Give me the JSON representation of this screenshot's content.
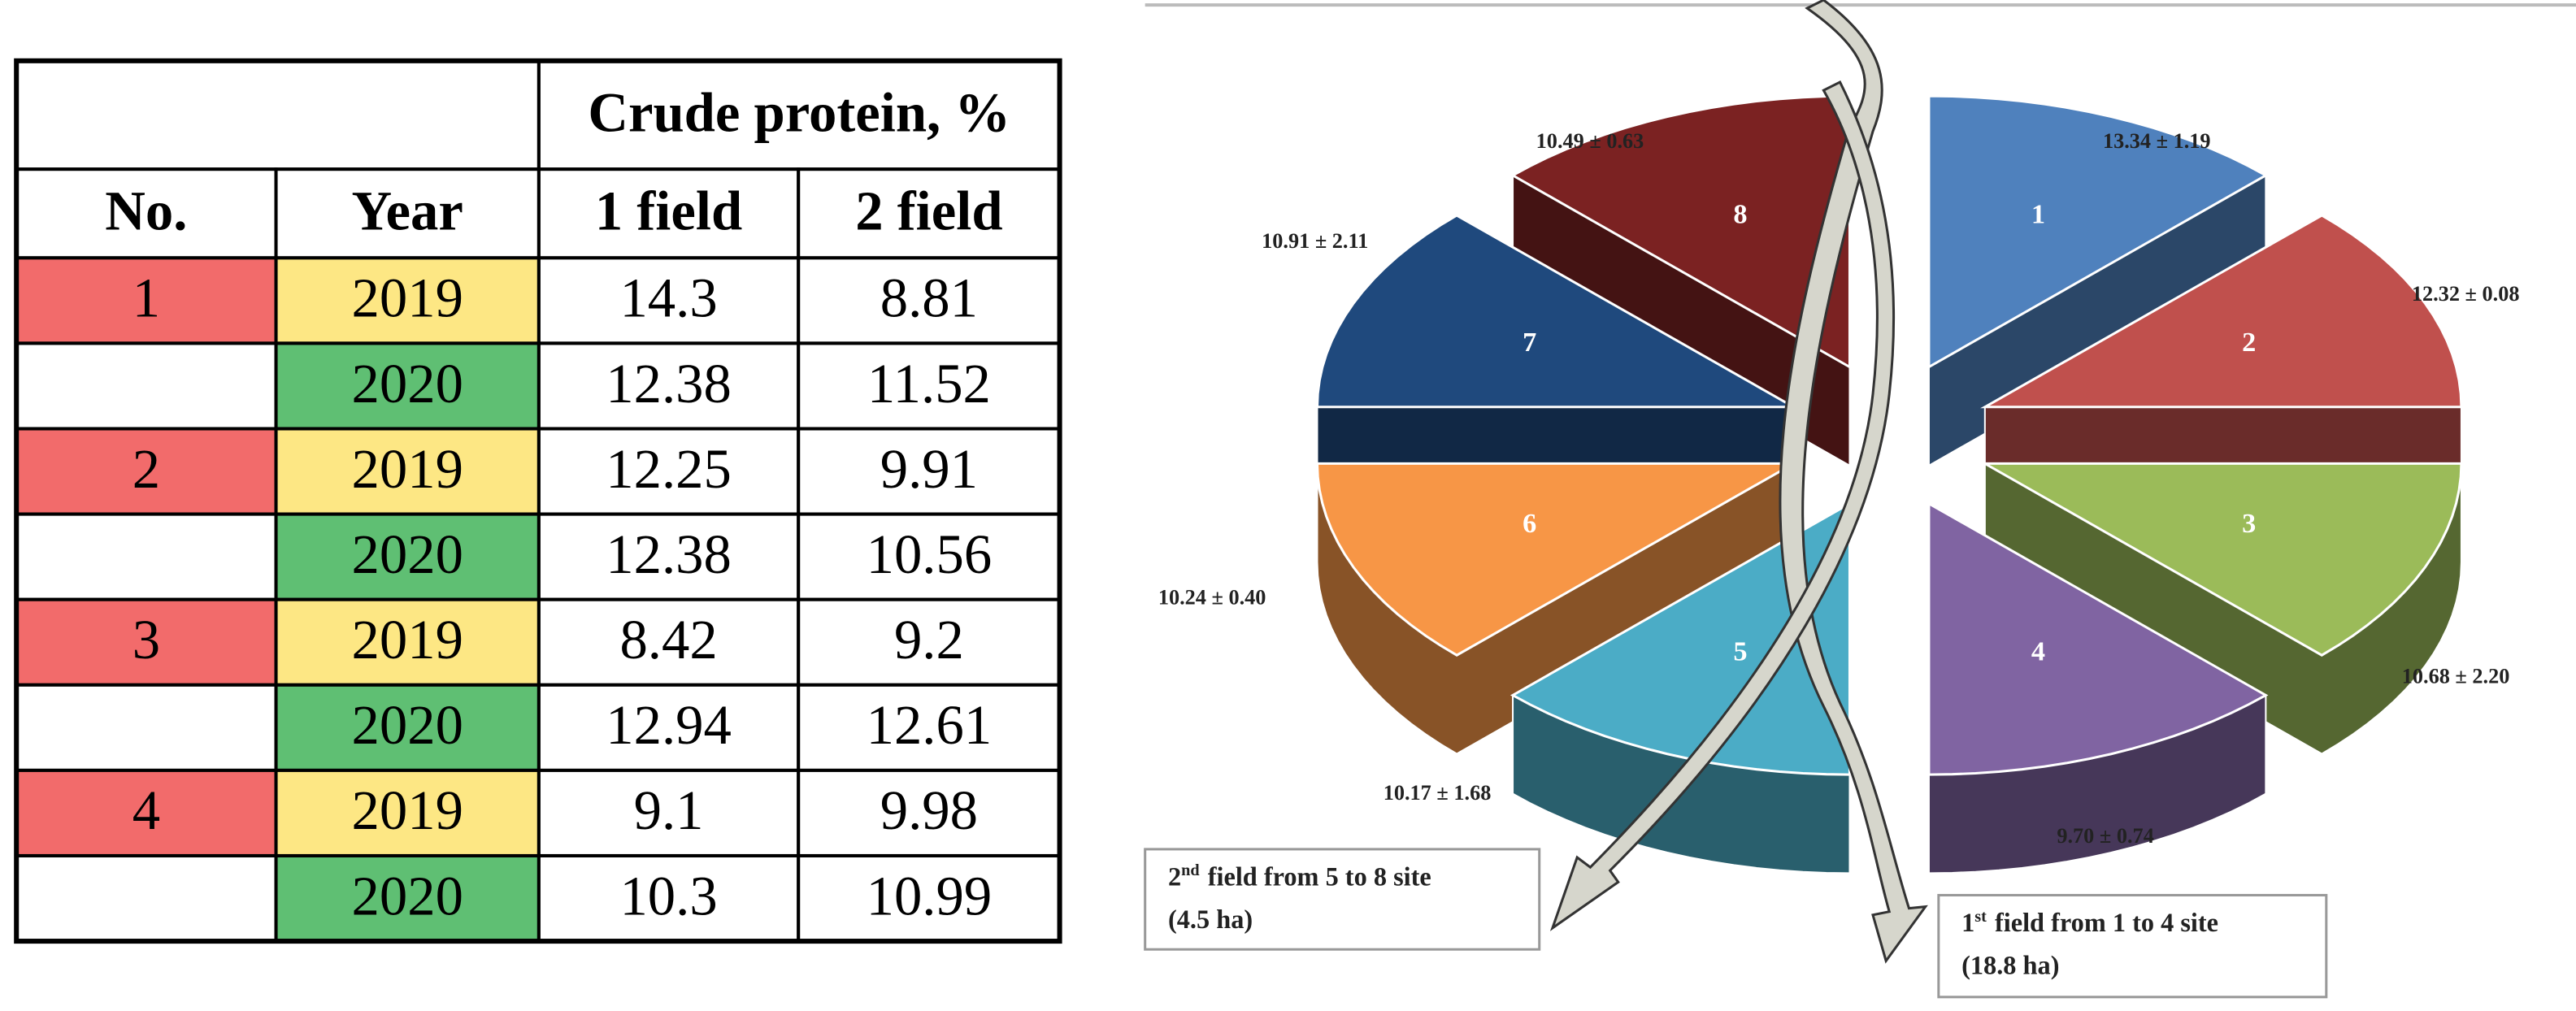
{
  "table": {
    "header": {
      "group": "Crude protein, %",
      "no": "No.",
      "year": "Year",
      "field1": "1 field",
      "field2": "2 field"
    },
    "groups": [
      {
        "no": 1,
        "rows": [
          {
            "year": 2019,
            "field1": 14.3,
            "field2": 8.81
          },
          {
            "year": 2020,
            "field1": 12.38,
            "field2": 11.52
          }
        ]
      },
      {
        "no": 2,
        "rows": [
          {
            "year": 2019,
            "field1": 12.25,
            "field2": 9.91
          },
          {
            "year": 2020,
            "field1": 12.38,
            "field2": 10.56
          }
        ]
      },
      {
        "no": 3,
        "rows": [
          {
            "year": 2019,
            "field1": 8.42,
            "field2": 9.2
          },
          {
            "year": 2020,
            "field1": 12.94,
            "field2": 12.61
          }
        ]
      },
      {
        "no": 4,
        "rows": [
          {
            "year": 2019,
            "field1": 9.1,
            "field2": 9.98
          },
          {
            "year": 2020,
            "field1": 10.3,
            "field2": 10.99
          }
        ]
      }
    ]
  },
  "figure": {
    "slices": [
      {
        "label": "1",
        "value": "13.34 ± 1.19",
        "color": "#4f81bd"
      },
      {
        "label": "2",
        "value": "12.32 ± 0.08",
        "color": "#c0504d"
      },
      {
        "label": "3",
        "value": "10.68 ± 2.20",
        "color": "#9bbb59"
      },
      {
        "label": "4",
        "value": "9.70 ± 0.74",
        "color": "#8064a2"
      },
      {
        "label": "5",
        "value": "10.17 ± 1.68",
        "color": "#4bacc6"
      },
      {
        "label": "6",
        "value": "10.24 ± 0.40",
        "color": "#f79646"
      },
      {
        "label": "7",
        "value": "10.91 ± 2.11",
        "color": "#1f497d"
      },
      {
        "label": "8",
        "value": "10.49 ± 0.63",
        "color": "#7b2222"
      }
    ],
    "boxes": [
      {
        "ordinal": "2",
        "suffix": "nd",
        "text": "field from 5 to 8 site",
        "area": "(4.5 ha)"
      },
      {
        "ordinal": "1",
        "suffix": "st",
        "text": "field from 1 to 4 site",
        "area": "(18.8 ha)"
      }
    ]
  }
}
